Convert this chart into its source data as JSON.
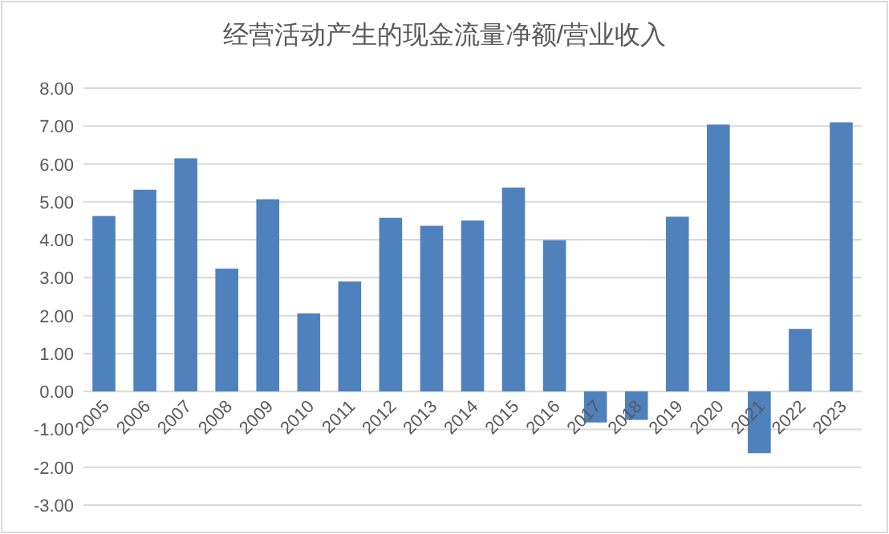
{
  "chart_data": {
    "type": "bar",
    "title": "经营活动产生的现金流量净额/营业收入",
    "categories": [
      "2005",
      "2006",
      "2007",
      "2008",
      "2009",
      "2010",
      "2011",
      "2012",
      "2013",
      "2014",
      "2015",
      "2016",
      "2017",
      "2018",
      "2019",
      "2020",
      "2021",
      "2022",
      "2023"
    ],
    "values": [
      4.63,
      5.32,
      6.15,
      3.24,
      5.07,
      2.06,
      2.9,
      4.58,
      4.37,
      4.51,
      5.38,
      3.99,
      -0.82,
      -0.75,
      4.61,
      7.04,
      -1.63,
      1.65,
      7.1
    ],
    "color": "#4f81bd",
    "ylim": [
      -3,
      8
    ],
    "yticks": [
      {
        "value": -3,
        "label": "-3.00"
      },
      {
        "value": -2,
        "label": "-2.00"
      },
      {
        "value": -1,
        "label": "-1.00"
      },
      {
        "value": 0,
        "label": "0.00"
      },
      {
        "value": 1,
        "label": "1.00"
      },
      {
        "value": 2,
        "label": "2.00"
      },
      {
        "value": 3,
        "label": "3.00"
      },
      {
        "value": 4,
        "label": "4.00"
      },
      {
        "value": 5,
        "label": "5.00"
      },
      {
        "value": 6,
        "label": "6.00"
      },
      {
        "value": 7,
        "label": "7.00"
      },
      {
        "value": 8,
        "label": "8.00"
      }
    ],
    "grid": "y"
  }
}
